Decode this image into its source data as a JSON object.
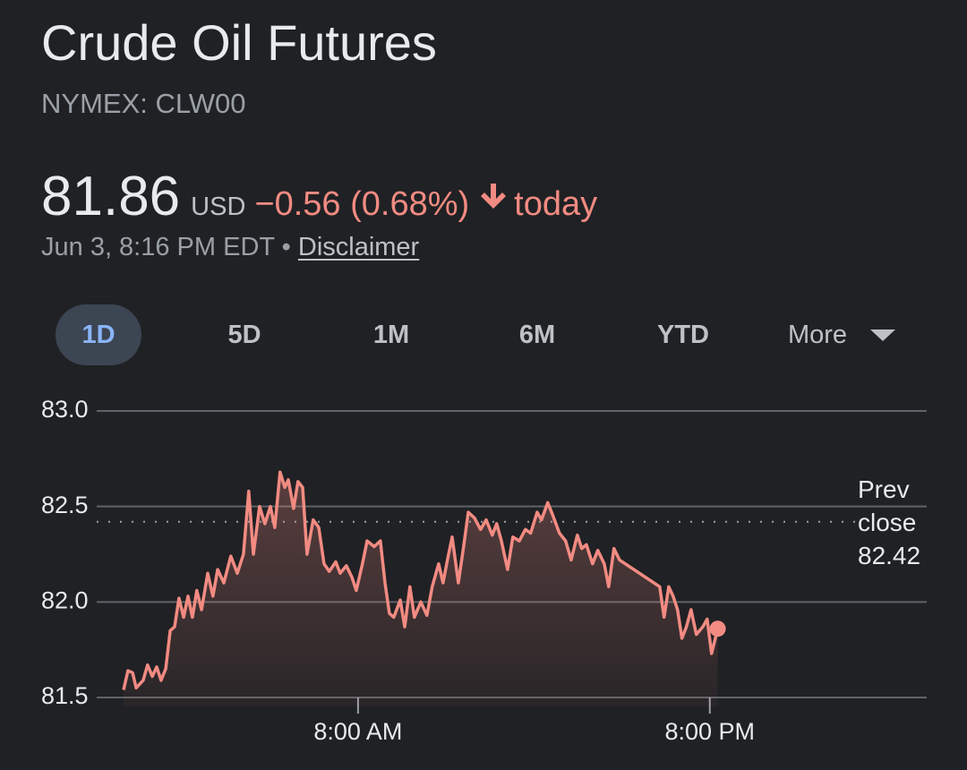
{
  "header": {
    "title": "Crude Oil Futures",
    "exchange": "NYMEX: CLW00"
  },
  "quote": {
    "price": 81.86,
    "currency": "USD",
    "change": "−0.56 (0.68%)",
    "period": "today",
    "timestamp": "Jun 3, 8:16 PM EDT",
    "separator": "•",
    "disclaimer": "Disclaimer"
  },
  "tabs": [
    "1D",
    "5D",
    "1M",
    "6M",
    "YTD",
    "More"
  ],
  "chart_data": {
    "type": "line",
    "x": [
      0,
      0.15,
      0.31,
      0.43,
      0.67,
      0.82,
      0.98,
      1.13,
      1.28,
      1.44,
      1.59,
      1.74,
      1.89,
      2.05,
      2.2,
      2.35,
      2.5,
      2.66,
      2.87,
      3.05,
      3.21,
      3.42,
      3.66,
      3.88,
      4.09,
      4.27,
      4.43,
      4.64,
      4.82,
      5.01,
      5.16,
      5.34,
      5.5,
      5.62,
      5.8,
      5.95,
      6.11,
      6.26,
      6.47,
      6.66,
      6.84,
      7.02,
      7.24,
      7.39,
      7.6,
      7.79,
      7.94,
      8.15,
      8.31,
      8.55,
      8.76,
      8.92,
      9.07,
      9.22,
      9.44,
      9.59,
      9.77,
      9.92,
      10.14,
      10.35,
      10.53,
      10.75,
      10.9,
      11.05,
      11.21,
      11.42,
      11.6,
      11.76,
      11.97,
      12.18,
      12.37,
      12.58,
      12.73,
      12.89,
      13.1,
      13.28,
      13.5,
      13.71,
      13.89,
      14.11,
      14.26,
      14.47,
      14.63,
      14.87,
      15.08,
      15.27,
      15.48,
      15.63,
      15.79,
      16.0,
      16.18,
      16.4,
      16.55,
      16.73,
      16.92,
      18.29,
      18.44,
      18.6,
      18.75,
      18.9,
      19.05,
      19.2,
      19.36,
      19.54,
      19.76,
      19.91,
      20.06,
      20.27
    ],
    "values": [
      81.54,
      81.64,
      81.63,
      81.55,
      81.59,
      81.67,
      81.61,
      81.66,
      81.59,
      81.65,
      81.85,
      81.87,
      82.02,
      81.92,
      82.03,
      81.92,
      82.06,
      81.96,
      82.15,
      82.03,
      82.17,
      82.1,
      82.24,
      82.15,
      82.25,
      82.58,
      82.25,
      82.5,
      82.41,
      82.5,
      82.39,
      82.68,
      82.6,
      82.64,
      82.49,
      82.63,
      82.6,
      82.25,
      82.43,
      82.39,
      82.2,
      82.16,
      82.21,
      82.15,
      82.19,
      82.13,
      82.06,
      82.2,
      82.32,
      82.29,
      82.32,
      82.1,
      81.94,
      81.92,
      82.01,
      81.87,
      82.08,
      81.92,
      82.0,
      81.93,
      82.08,
      82.2,
      82.1,
      82.22,
      82.34,
      82.1,
      82.29,
      82.47,
      82.44,
      82.38,
      82.43,
      82.35,
      82.41,
      82.32,
      82.17,
      82.34,
      82.32,
      82.38,
      82.36,
      82.47,
      82.43,
      82.52,
      82.46,
      82.36,
      82.32,
      82.22,
      82.35,
      82.28,
      82.3,
      82.2,
      82.27,
      82.2,
      82.08,
      82.28,
      82.22,
      82.08,
      81.92,
      82.08,
      82.03,
      81.96,
      81.81,
      81.87,
      81.96,
      81.83,
      81.87,
      81.91,
      81.73,
      81.86
    ],
    "color": "#f28b82",
    "xlim": [
      0,
      27.4
    ],
    "xticks": [
      {
        "value": 8,
        "label": "8:00 AM"
      },
      {
        "value": 20,
        "label": "8:00 PM"
      }
    ],
    "ylim": [
      81.5,
      83
    ],
    "yticks": [
      {
        "value": 83,
        "label": "83.0"
      },
      82.5,
      {
        "value": 82,
        "label": "82.0"
      },
      81.5
    ],
    "grid": true,
    "reference": {
      "label": "Prev close",
      "value": 82.42
    }
  }
}
